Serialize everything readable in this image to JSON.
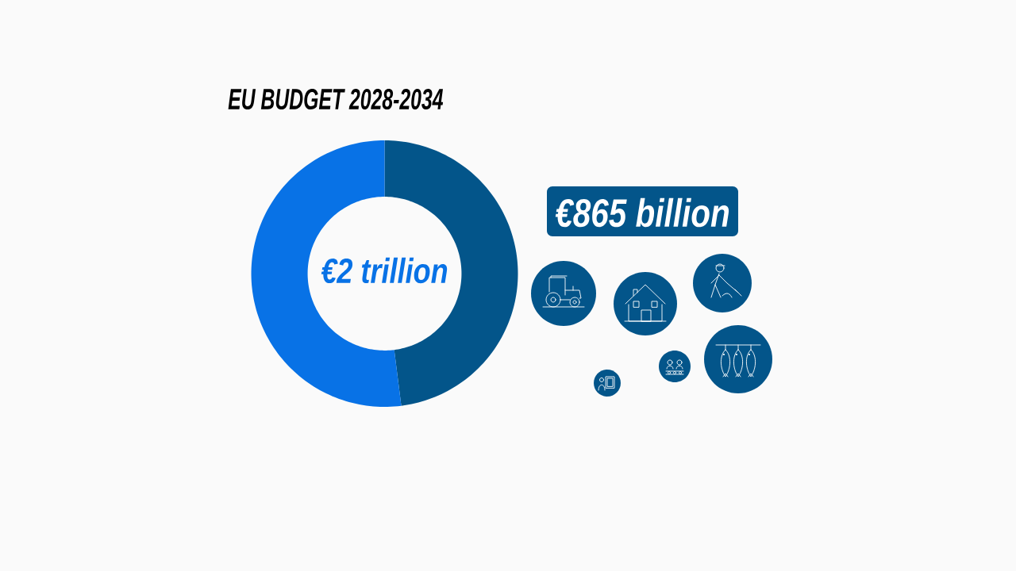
{
  "chart_data": {
    "type": "donut",
    "title": "EU BUDGET 2028-2034",
    "categories": [
      null,
      null
    ],
    "values": [
      48,
      52
    ],
    "colors": [
      "#03558a",
      "#0872e6"
    ],
    "annotations": [
      "€2 trillion",
      "€865 billion"
    ]
  }
}
